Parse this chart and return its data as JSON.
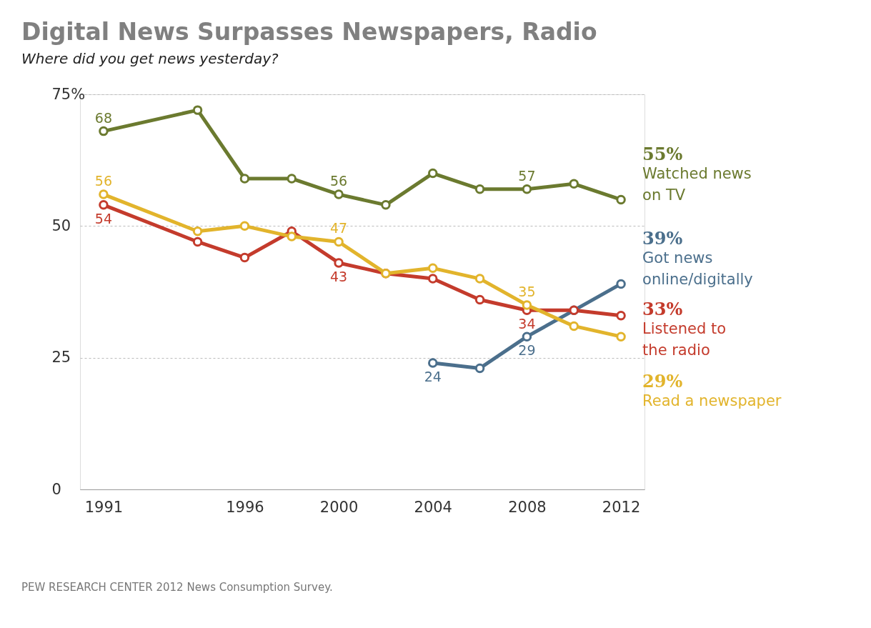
{
  "chart_data": {
    "type": "line",
    "title": "Digital News Surpasses Newspapers, Radio",
    "subtitle": "Where did you get news yesterday?",
    "categories": [
      "1991",
      null,
      null,
      "1996",
      null,
      "2000",
      null,
      "2004",
      null,
      "2008",
      null,
      "2012"
    ],
    "series": [
      {
        "name": "Watched news\non TV",
        "color": "#6b7a2f",
        "values": [
          68,
          null,
          72,
          59,
          59,
          56,
          54,
          60,
          57,
          57,
          58,
          55
        ],
        "value_labels": [
          "68",
          null,
          null,
          null,
          null,
          "56",
          null,
          null,
          null,
          "57",
          null,
          "55%"
        ]
      },
      {
        "name": "Got news\nonline/digitally",
        "color": "#4b6f8c",
        "values": [
          null,
          null,
          null,
          null,
          null,
          null,
          null,
          24,
          23,
          29,
          34,
          39
        ],
        "value_labels": [
          null,
          null,
          null,
          null,
          null,
          null,
          null,
          "24",
          null,
          "29",
          null,
          "39%"
        ]
      },
      {
        "name": "Listened to\nthe radio",
        "color": "#c43b2c",
        "values": [
          54,
          null,
          47,
          44,
          49,
          43,
          41,
          40,
          36,
          34,
          34,
          33
        ],
        "value_labels": [
          "54",
          null,
          null,
          null,
          null,
          "43",
          null,
          null,
          null,
          "34",
          null,
          "33%"
        ]
      },
      {
        "name": "Read a newspaper",
        "color": "#e2b42c",
        "values": [
          56,
          null,
          49,
          50,
          48,
          47,
          41,
          42,
          40,
          35,
          31,
          29
        ],
        "value_labels": [
          "56",
          null,
          null,
          null,
          null,
          "47",
          null,
          null,
          null,
          "35",
          null,
          "29%"
        ]
      }
    ],
    "ylim": [
      0,
      75
    ],
    "yticks": [
      0,
      25,
      50,
      {
        "value": 75,
        "label": "75%"
      }
    ],
    "grid": "y",
    "marker": "circle",
    "line_style": "solid",
    "annotations": [
      "PEW RESEARCH CENTER 2012 News Consumption Survey."
    ]
  }
}
